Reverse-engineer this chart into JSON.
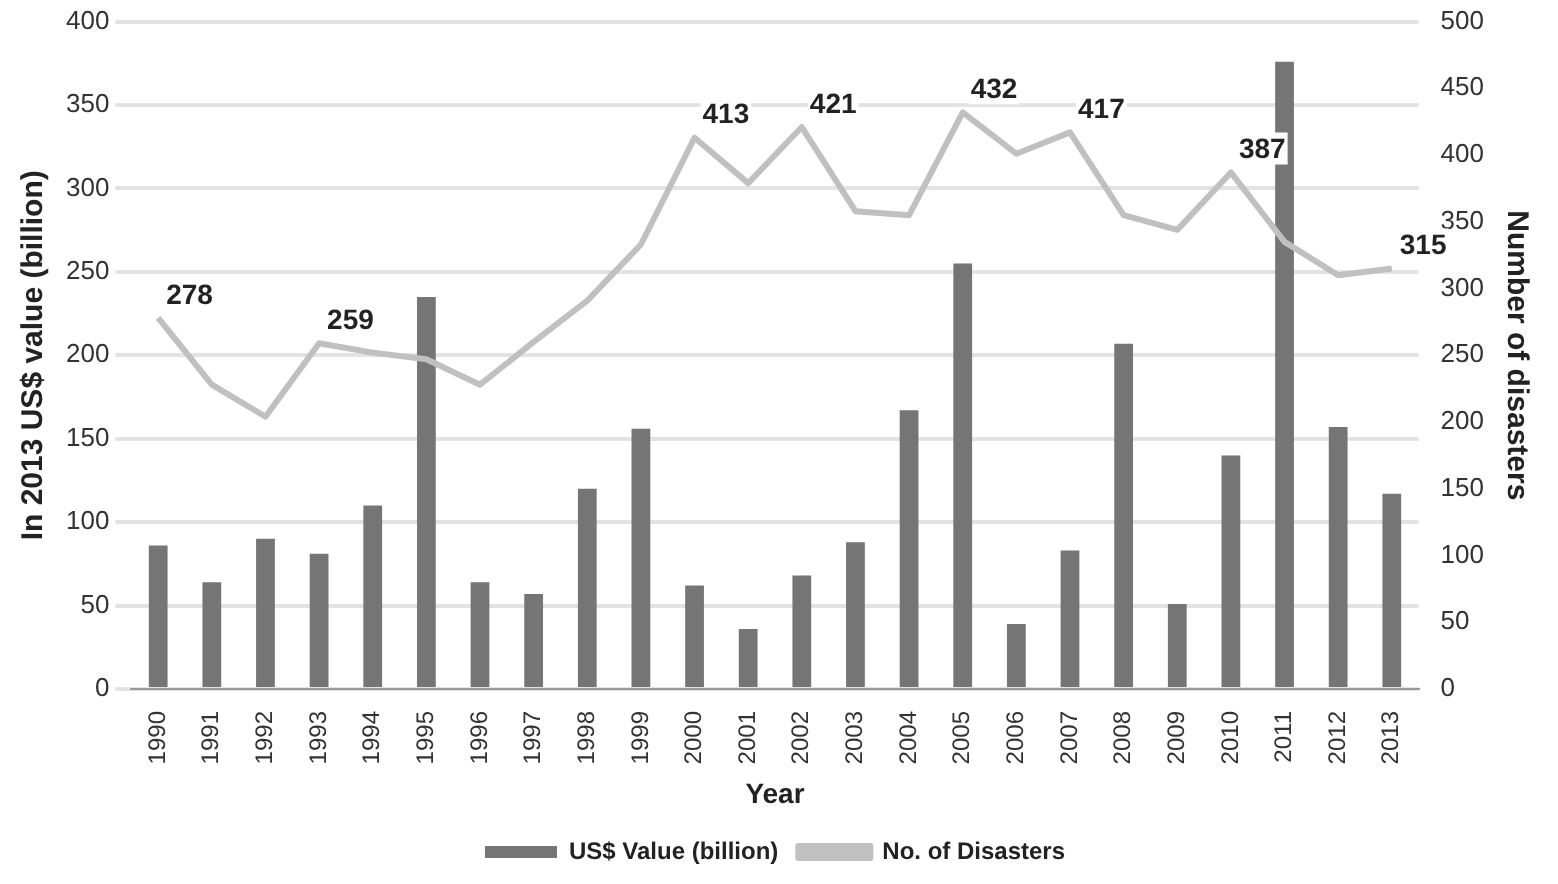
{
  "chart_data": {
    "type": "bar",
    "xlabel": "Year",
    "ylabel": "In 2013 US$ value (billion)",
    "y2label": "Number of disasters",
    "categories": [
      "1990",
      "1991",
      "1992",
      "1993",
      "1994",
      "1995",
      "1996",
      "1997",
      "1998",
      "1999",
      "2000",
      "2001",
      "2002",
      "2003",
      "2004",
      "2005",
      "2006",
      "2007",
      "2008",
      "2009",
      "2010",
      "2011",
      "2012",
      "2013"
    ],
    "series": [
      {
        "name": "US$ Value (billion)",
        "color": "#757575",
        "values": [
          86,
          64,
          90,
          81,
          110,
          235,
          64,
          57,
          120,
          156,
          62,
          36,
          68,
          88,
          167,
          255,
          39,
          83,
          207,
          51,
          140,
          376,
          157,
          117
        ]
      },
      {
        "name": "No. of Disasters",
        "type": "line",
        "axis": "y2",
        "color": "#c0c0c0",
        "values": [
          278,
          228,
          204,
          259,
          252,
          247,
          228,
          260,
          291,
          333,
          413,
          379,
          421,
          358,
          355,
          432,
          401,
          417,
          355,
          344,
          387,
          335,
          310,
          315
        ],
        "value_labels": [
          "278",
          null,
          null,
          "259",
          null,
          null,
          null,
          null,
          null,
          null,
          "413",
          null,
          "421",
          null,
          null,
          "432",
          null,
          "417",
          null,
          null,
          "387",
          null,
          null,
          "315"
        ]
      }
    ],
    "ylim": [
      0,
      400
    ],
    "yticks": [
      0,
      50,
      100,
      150,
      200,
      250,
      300,
      350,
      400
    ],
    "y2lim": [
      0,
      500
    ],
    "y2ticks": [
      0,
      50,
      100,
      150,
      200,
      250,
      300,
      350,
      400,
      450,
      500
    ],
    "grid": "y",
    "legend": "bottom",
    "marker": "none"
  }
}
